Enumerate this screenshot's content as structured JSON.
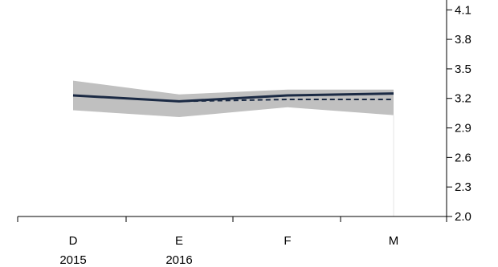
{
  "chart_data": {
    "type": "line",
    "categories": [
      "D",
      "E",
      "F",
      "M"
    ],
    "category_sublabels": [
      "2015",
      "2016",
      "",
      ""
    ],
    "yticks": [
      "4.1",
      "3.8",
      "3.5",
      "3.2",
      "2.9",
      "2.6",
      "2.3",
      "2.0"
    ],
    "ylim": [
      2.0,
      4.2
    ],
    "y_axis_position": "right",
    "grid": false,
    "legend": "none",
    "series": [
      {
        "values": [
          3.23,
          3.17,
          3.23,
          3.25
        ],
        "style": "solid",
        "color": "#1b2a44"
      },
      {
        "values": [
          3.23,
          3.17,
          3.19,
          3.19
        ],
        "style": "dashed",
        "color": "#1b2a44"
      }
    ],
    "band": {
      "upper": [
        3.38,
        3.24,
        3.29,
        3.29
      ],
      "lower": [
        3.08,
        3.01,
        3.11,
        3.03
      ],
      "color": "#c0c0c0"
    }
  }
}
